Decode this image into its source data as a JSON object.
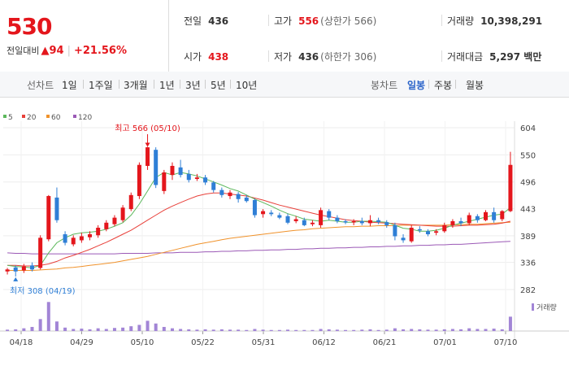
{
  "header": {
    "current_price": "530",
    "change_label": "전일대비",
    "change_value": "▲94",
    "change_pct": "+21.56%",
    "prev_close_label": "전일",
    "prev_close": "436",
    "high_label": "고가",
    "high": "556",
    "upper_limit": "(상한가 566)",
    "volume_label": "거래량",
    "volume": "10,398,291",
    "open_label": "시가",
    "open": "438",
    "low_label": "저가",
    "low": "436",
    "lower_limit": "(하한가 306)",
    "amount_label": "거래대금",
    "amount": "5,297 백만"
  },
  "toolbar": {
    "line_label": "선차트",
    "line_options": [
      "1일",
      "1주일",
      "3개월",
      "1년",
      "3년",
      "5년",
      "10년"
    ],
    "candle_label": "봉차트",
    "candle_options": [
      "일봉",
      "주봉",
      "월봉"
    ],
    "active_candle": "일봉"
  },
  "colors": {
    "up": "#e4161c",
    "down": "#2f7fd6",
    "ma5": "#5cb85c",
    "ma20": "#e8403a",
    "ma60": "#f0922b",
    "ma120": "#9b59b6",
    "volume": "#a285d6"
  },
  "chart_data": {
    "type": "candlestick",
    "legend": [
      "5",
      "20",
      "60",
      "120"
    ],
    "y_ticks": [
      604,
      550,
      496,
      443,
      389,
      336,
      282
    ],
    "ylim": [
      282,
      604
    ],
    "x_labels": [
      "04/18",
      "04/29",
      "05/10",
      "05/22",
      "05/31",
      "06/12",
      "06/21",
      "07/01",
      "07/10"
    ],
    "max_label": "최고 566 (05/10)",
    "min_label": "최저 308 (04/19)",
    "volume_label": "거래량",
    "candles": [
      [
        318,
        322,
        312,
        325
      ],
      [
        326,
        318,
        308,
        330
      ],
      [
        320,
        328,
        315,
        333
      ],
      [
        330,
        322,
        318,
        336
      ],
      [
        325,
        385,
        322,
        390
      ],
      [
        382,
        468,
        378,
        470
      ],
      [
        465,
        420,
        415,
        485
      ],
      [
        392,
        375,
        370,
        398
      ],
      [
        372,
        385,
        368,
        390
      ],
      [
        380,
        388,
        375,
        395
      ],
      [
        386,
        392,
        380,
        398
      ],
      [
        390,
        405,
        385,
        410
      ],
      [
        402,
        415,
        398,
        420
      ],
      [
        412,
        425,
        408,
        430
      ],
      [
        420,
        445,
        416,
        450
      ],
      [
        442,
        470,
        438,
        475
      ],
      [
        468,
        530,
        462,
        535
      ],
      [
        528,
        565,
        520,
        566
      ],
      [
        560,
        490,
        484,
        565
      ],
      [
        478,
        515,
        472,
        520
      ],
      [
        510,
        528,
        500,
        535
      ],
      [
        525,
        510,
        505,
        540
      ],
      [
        512,
        500,
        495,
        520
      ],
      [
        502,
        505,
        498,
        512
      ],
      [
        505,
        495,
        490,
        510
      ],
      [
        495,
        480,
        475,
        498
      ],
      [
        480,
        470,
        465,
        485
      ],
      [
        468,
        475,
        462,
        480
      ],
      [
        472,
        462,
        455,
        476
      ],
      [
        465,
        458,
        455,
        470
      ],
      [
        460,
        430,
        425,
        463
      ],
      [
        432,
        438,
        425,
        442
      ],
      [
        435,
        432,
        428,
        440
      ],
      [
        430,
        425,
        422,
        435
      ],
      [
        428,
        415,
        412,
        433
      ],
      [
        418,
        422,
        414,
        428
      ],
      [
        420,
        410,
        408,
        425
      ],
      [
        412,
        415,
        408,
        420
      ],
      [
        410,
        440,
        405,
        445
      ],
      [
        438,
        425,
        420,
        442
      ],
      [
        425,
        418,
        414,
        430
      ],
      [
        418,
        416,
        412,
        422
      ],
      [
        416,
        418,
        410,
        422
      ],
      [
        418,
        414,
        410,
        425
      ],
      [
        414,
        420,
        408,
        430
      ],
      [
        420,
        416,
        412,
        425
      ],
      [
        416,
        410,
        405,
        420
      ],
      [
        410,
        388,
        380,
        415
      ],
      [
        385,
        380,
        375,
        392
      ],
      [
        378,
        405,
        375,
        410
      ],
      [
        402,
        400,
        395,
        408
      ],
      [
        398,
        392,
        388,
        402
      ],
      [
        395,
        398,
        390,
        402
      ],
      [
        398,
        410,
        395,
        415
      ],
      [
        410,
        418,
        405,
        422
      ],
      [
        418,
        414,
        408,
        425
      ],
      [
        414,
        430,
        410,
        435
      ],
      [
        428,
        420,
        415,
        432
      ],
      [
        420,
        436,
        418,
        440
      ],
      [
        436,
        420,
        415,
        445
      ],
      [
        422,
        438,
        418,
        440
      ],
      [
        438,
        530,
        436,
        556
      ]
    ],
    "volumes": [
      0.04,
      0.05,
      0.08,
      0.12,
      0.35,
      0.85,
      0.28,
      0.1,
      0.06,
      0.07,
      0.05,
      0.08,
      0.06,
      0.09,
      0.1,
      0.14,
      0.18,
      0.3,
      0.22,
      0.12,
      0.08,
      0.06,
      0.05,
      0.04,
      0.05,
      0.04,
      0.05,
      0.04,
      0.04,
      0.03,
      0.06,
      0.04,
      0.03,
      0.03,
      0.04,
      0.03,
      0.03,
      0.03,
      0.06,
      0.05,
      0.04,
      0.03,
      0.03,
      0.04,
      0.05,
      0.03,
      0.04,
      0.08,
      0.05,
      0.06,
      0.05,
      0.04,
      0.04,
      0.05,
      0.06,
      0.05,
      0.08,
      0.06,
      0.06,
      0.07,
      0.05,
      0.42
    ],
    "ma5": [
      330,
      328,
      327,
      325,
      330,
      355,
      375,
      385,
      392,
      395,
      396,
      398,
      402,
      408,
      415,
      430,
      452,
      478,
      505,
      515,
      510,
      515,
      512,
      508,
      502,
      496,
      490,
      483,
      478,
      470,
      462,
      455,
      448,
      440,
      433,
      428,
      422,
      420,
      418,
      420,
      418,
      416,
      416,
      418,
      418,
      417,
      416,
      410,
      404,
      402,
      398,
      398,
      400,
      404,
      410,
      414,
      418,
      422,
      426,
      430,
      432,
      445
    ],
    "ma20": [
      330,
      330,
      329,
      329,
      330,
      333,
      338,
      345,
      350,
      356,
      362,
      369,
      376,
      384,
      392,
      400,
      410,
      420,
      430,
      440,
      448,
      455,
      462,
      468,
      472,
      474,
      474,
      472,
      470,
      468,
      464,
      460,
      455,
      450,
      446,
      442,
      438,
      434,
      430,
      427,
      424,
      421,
      419,
      418,
      416,
      415,
      414,
      413,
      412,
      411,
      410,
      409,
      408,
      408,
      408,
      409,
      410,
      410,
      411,
      412,
      414,
      418
    ],
    "ma60": [
      320,
      320,
      320,
      320,
      321,
      322,
      323,
      325,
      326,
      328,
      330,
      332,
      334,
      336,
      339,
      342,
      345,
      348,
      352,
      356,
      360,
      364,
      368,
      372,
      375,
      378,
      381,
      384,
      386,
      388,
      390,
      392,
      394,
      396,
      398,
      400,
      401,
      403,
      404,
      405,
      406,
      407,
      407,
      408,
      408,
      409,
      409,
      409,
      410,
      410,
      410,
      410,
      410,
      410,
      411,
      411,
      412,
      412,
      413,
      414,
      415,
      416
    ],
    "ma120": [
      355,
      354,
      354,
      353,
      353,
      353,
      353,
      353,
      353,
      353,
      353,
      353,
      353,
      353,
      354,
      354,
      354,
      354,
      355,
      355,
      355,
      356,
      356,
      356,
      357,
      357,
      358,
      358,
      359,
      359,
      360,
      360,
      361,
      361,
      362,
      362,
      363,
      363,
      364,
      364,
      365,
      365,
      366,
      366,
      367,
      367,
      368,
      368,
      369,
      369,
      370,
      370,
      371,
      371,
      372,
      372,
      373,
      374,
      375,
      376,
      377,
      378
    ]
  }
}
